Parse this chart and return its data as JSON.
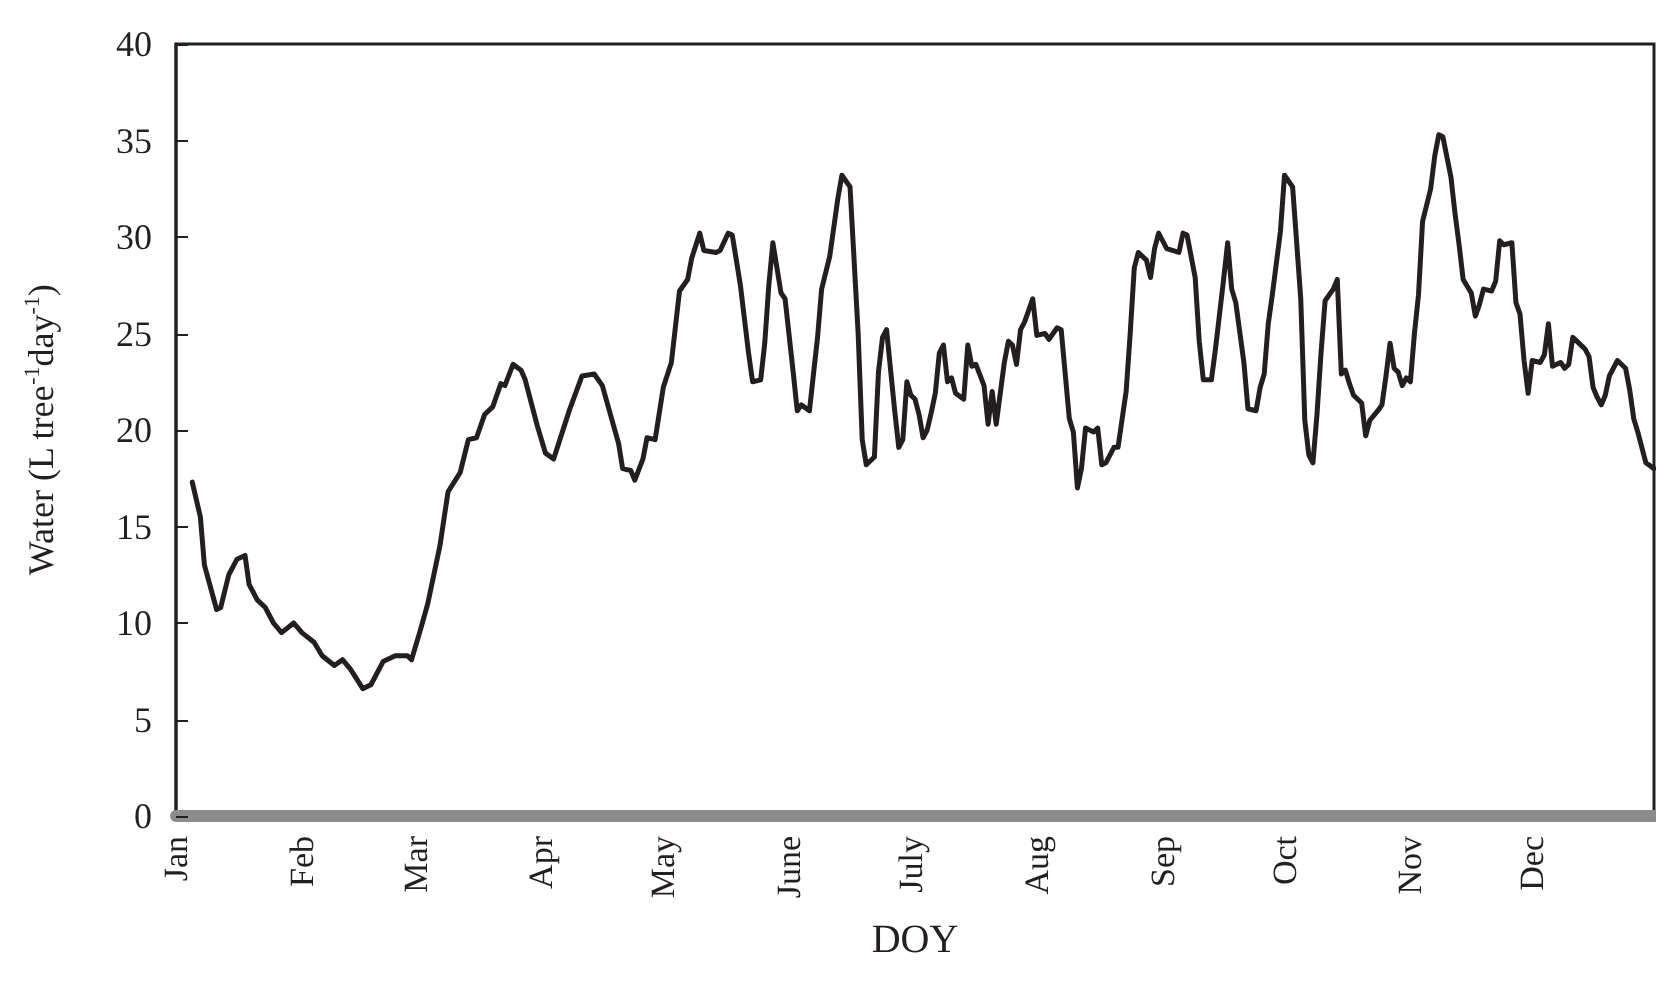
{
  "chart_data": {
    "type": "line",
    "xlabel": "DOY",
    "ylabel": "Water (L tree$^{-1}$day$^{-1}$)",
    "xlim": [
      "--01-01",
      "--12-31"
    ],
    "xticks": [
      {
        "value": "--01-01",
        "label": "Jan"
      },
      {
        "value": "--02-01",
        "label": "Feb"
      },
      {
        "value": "--03-01",
        "label": "Mar"
      },
      {
        "value": "--04-01",
        "label": "Apr"
      },
      {
        "value": "--05-01",
        "label": "May"
      },
      {
        "value": "--06-01",
        "label": "June"
      },
      {
        "value": "--07-01",
        "label": "July"
      },
      {
        "value": "--08-01",
        "label": "Aug"
      },
      {
        "value": "--09-01",
        "label": "Sep"
      },
      {
        "value": "--10-01",
        "label": "Oct"
      },
      {
        "value": "--11-01",
        "label": "Nov"
      },
      {
        "value": "--12-01",
        "label": "Dec"
      }
    ],
    "ylim": [
      0,
      40
    ],
    "yticks": [
      0,
      5,
      10,
      15,
      20,
      25,
      30,
      35,
      40
    ],
    "grid": false,
    "marker": "none",
    "line_style": "solid",
    "series": [
      {
        "color": "#231f20",
        "x": [
          "--01-05",
          "--01-07",
          "--01-08",
          "--01-11",
          "--01-12",
          "--01-14",
          "--01-16",
          "--01-18",
          "--01-19",
          "--01-21",
          "--01-23",
          "--01-25",
          "--01-27",
          "--01-30",
          "--02-01",
          "--02-04",
          "--02-06",
          "--02-09",
          "--02-11",
          "--02-13",
          "--02-16",
          "--02-18",
          "--02-21",
          "--02-24",
          "--02-27",
          "--02-28",
          "--03-02",
          "--03-04",
          "--03-07",
          "--03-09",
          "--03-12",
          "--03-14",
          "--03-16",
          "--03-18",
          "--03-20",
          "--03-22",
          "--03-23",
          "--03-25",
          "--03-27",
          "--03-28",
          "--03-31",
          "--04-02",
          "--04-04",
          "--04-06",
          "--04-08",
          "--04-11",
          "--04-14",
          "--04-16",
          "--04-18",
          "--04-20",
          "--04-21",
          "--04-23",
          "--04-24",
          "--04-26",
          "--04-27",
          "--04-29",
          "--05-01",
          "--05-03",
          "--05-05",
          "--05-07",
          "--05-08",
          "--05-10",
          "--05-11",
          "--05-14",
          "--05-15",
          "--05-17",
          "--05-18",
          "--05-20",
          "--05-22",
          "--05-23",
          "--05-25",
          "--05-26",
          "--05-27",
          "--05-28",
          "--05-30",
          "--05-31",
          "--06-02",
          "--06-03",
          "--06-04",
          "--06-06",
          "--06-08",
          "--06-09",
          "--06-11",
          "--06-13",
          "--06-14",
          "--06-16",
          "--06-18",
          "--06-19",
          "--06-20",
          "--06-22",
          "--06-23",
          "--06-24",
          "--06-25",
          "--06-27",
          "--06-28",
          "--06-29",
          "--06-30",
          "--07-01",
          "--07-02",
          "--07-03",
          "--07-04",
          "--07-05",
          "--07-06",
          "--07-07",
          "--07-08",
          "--07-09",
          "--07-10",
          "--07-11",
          "--07-12",
          "--07-14",
          "--07-15",
          "--07-16",
          "--07-17",
          "--07-19",
          "--07-20",
          "--07-21",
          "--07-22",
          "--07-24",
          "--07-25",
          "--07-26",
          "--07-27",
          "--07-28",
          "--07-29",
          "--07-31",
          "--08-01",
          "--08-03",
          "--08-04",
          "--08-06",
          "--08-07",
          "--08-09",
          "--08-10",
          "--08-11",
          "--08-12",
          "--08-13",
          "--08-15",
          "--08-16",
          "--08-17",
          "--08-18",
          "--08-20",
          "--08-21",
          "--08-23",
          "--08-24",
          "--08-25",
          "--08-26",
          "--08-28",
          "--08-29",
          "--08-30",
          "--08-31",
          "--09-02",
          "--09-05",
          "--09-06",
          "--09-07",
          "--09-09",
          "--09-10",
          "--09-11",
          "--09-13",
          "--09-14",
          "--09-16",
          "--09-17",
          "--09-18",
          "--09-19",
          "--09-21",
          "--09-22",
          "--09-24",
          "--09-25",
          "--09-26",
          "--09-27",
          "--09-28",
          "--09-30",
          "--10-01",
          "--10-03",
          "--10-05",
          "--10-06",
          "--10-07",
          "--10-08",
          "--10-09",
          "--10-10",
          "--10-11",
          "--10-13",
          "--10-14",
          "--10-15",
          "--10-16",
          "--10-17",
          "--10-18",
          "--10-20",
          "--10-21",
          "--10-22",
          "--10-24",
          "--10-25",
          "--10-26",
          "--10-27",
          "--10-28",
          "--10-29",
          "--10-30",
          "--10-31",
          "--11-01",
          "--11-02",
          "--11-03",
          "--11-04",
          "--11-06",
          "--11-07",
          "--11-08",
          "--11-09",
          "--11-11",
          "--11-12",
          "--11-13",
          "--11-14",
          "--11-16",
          "--11-17",
          "--11-18",
          "--11-19",
          "--11-21",
          "--11-22",
          "--11-23",
          "--11-24",
          "--11-26",
          "--11-27",
          "--11-28",
          "--11-29",
          "--11-30",
          "--12-01",
          "--12-03",
          "--12-04",
          "--12-05",
          "--12-06",
          "--12-08",
          "--12-09",
          "--12-10",
          "--12-11",
          "--12-13",
          "--12-14",
          "--12-15",
          "--12-16",
          "--12-17",
          "--12-18",
          "--12-19",
          "--12-20",
          "--12-22",
          "--12-24",
          "--12-25",
          "--12-26",
          "--12-27",
          "--12-29",
          "--12-31"
        ],
        "values": [
          17.3,
          15.5,
          13,
          10.7,
          10.8,
          12.5,
          13.3,
          13.5,
          12,
          11.2,
          10.8,
          10,
          9.5,
          10,
          9.5,
          9,
          8.3,
          7.8,
          8.1,
          7.6,
          6.6,
          6.8,
          8,
          8.3,
          8.3,
          8.1,
          9.5,
          11,
          14,
          16.8,
          17.8,
          19.5,
          19.6,
          20.8,
          21.2,
          22.4,
          22.3,
          23.4,
          23.1,
          22.6,
          20.2,
          18.8,
          18.5,
          19.8,
          21.1,
          22.8,
          22.9,
          22.3,
          20.8,
          19.3,
          18,
          17.9,
          17.4,
          18.5,
          19.6,
          19.5,
          22.2,
          23.5,
          27.2,
          27.8,
          28.9,
          30.2,
          29.3,
          29.2,
          29.3,
          30.2,
          30.1,
          27.5,
          24,
          22.5,
          22.6,
          24.5,
          27.5,
          29.7,
          27.1,
          26.8,
          23,
          21,
          21.3,
          21,
          24.8,
          27.3,
          29,
          32,
          33.2,
          32.6,
          25,
          19.5,
          18.2,
          18.6,
          23,
          24.8,
          25.2,
          21,
          19.1,
          19.5,
          22.5,
          21.8,
          21.6,
          20.8,
          19.6,
          20,
          20.9,
          21.9,
          24,
          24.4,
          22.5,
          22.7,
          21.9,
          21.6,
          24.4,
          23.3,
          23.4,
          22.3,
          20.3,
          22,
          20.3,
          23.5,
          24.6,
          24.4,
          23.4,
          25.2,
          25.6,
          26.8,
          24.9,
          25,
          24.7,
          25.3,
          25.2,
          20.6,
          19.9,
          17,
          18,
          20.1,
          19.9,
          20.1,
          18.2,
          18.3,
          19.1,
          19.1,
          22,
          25,
          28.4,
          29.2,
          28.8,
          27.9,
          29.4,
          30.2,
          29.4,
          29.2,
          30.2,
          30.1,
          27.9,
          24.6,
          22.6,
          22.6,
          24.2,
          27.8,
          29.7,
          27.3,
          26.6,
          23.5,
          21.1,
          21,
          22.2,
          22.9,
          25.5,
          27,
          30.3,
          33.2,
          32.6,
          26.8,
          20.5,
          18.7,
          18.3,
          20.8,
          24,
          26.7,
          27.3,
          27.8,
          22.9,
          23.1,
          22.4,
          21.8,
          21.4,
          19.7,
          20.5,
          21,
          21.3,
          22.8,
          24.5,
          23.2,
          23,
          22.3,
          22.7,
          22.5,
          25,
          27,
          30.8,
          32.5,
          34.2,
          35.3,
          35.2,
          33.1,
          31.2,
          29.6,
          27.8,
          27.1,
          25.9,
          26.5,
          27.3,
          27.2,
          27.7,
          29.8,
          29.6,
          29.7,
          26.6,
          26,
          23.6,
          21.9,
          23.6,
          23.5,
          23.9,
          25.5,
          23.3,
          23.5,
          23.2,
          23.4,
          24.8,
          24.4,
          24.2,
          23.8,
          22.2,
          21.7,
          21.3,
          21.8,
          22.8,
          23.6,
          23.2,
          22.1,
          20.6,
          19.9,
          18.3,
          18
        ]
      }
    ]
  }
}
